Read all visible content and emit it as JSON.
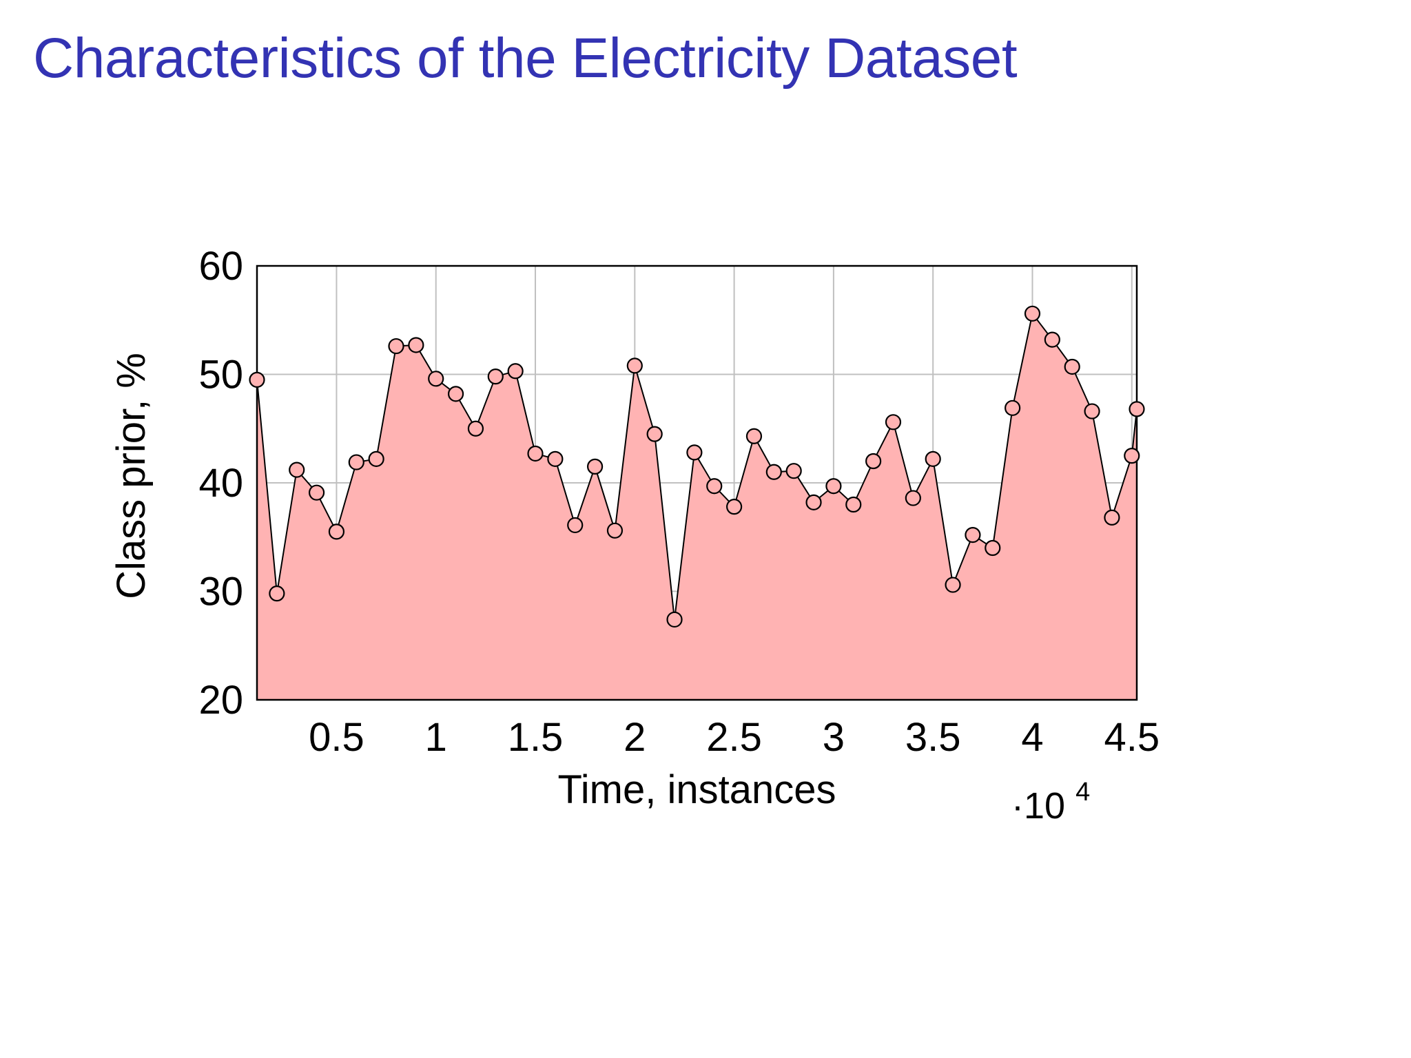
{
  "slide": {
    "title": "Characteristics of the Electricity Dataset",
    "title_color": "#3333b3"
  },
  "chart_data": {
    "type": "area",
    "xlabel": "Time, instances",
    "ylabel": "Class prior, %",
    "x_multiplier": "·10",
    "x_multiplier_exp": "4",
    "xlim": [
      0.1,
      4.525
    ],
    "ylim": [
      20,
      60
    ],
    "x_ticks": [
      0.5,
      1,
      1.5,
      2,
      2.5,
      3,
      3.5,
      4,
      4.5
    ],
    "x_tick_labels": [
      "0.5",
      "1",
      "1.5",
      "2",
      "2.5",
      "3",
      "3.5",
      "4",
      "4.5"
    ],
    "y_ticks": [
      20,
      30,
      40,
      50,
      60
    ],
    "y_tick_labels": [
      "20",
      "30",
      "40",
      "50",
      "60"
    ],
    "grid": true,
    "colors": {
      "fill": "#ffb3b3",
      "marker_fill": "#ffb3b3",
      "line": "#000000",
      "grid": "#c0c0c0"
    },
    "x": [
      0.1,
      0.2,
      0.3,
      0.4,
      0.5,
      0.6,
      0.7,
      0.8,
      0.9,
      1.0,
      1.1,
      1.2,
      1.3,
      1.4,
      1.5,
      1.6,
      1.7,
      1.8,
      1.9,
      2.0,
      2.1,
      2.2,
      2.3,
      2.4,
      2.5,
      2.6,
      2.7,
      2.8,
      2.9,
      3.0,
      3.1,
      3.2,
      3.3,
      3.4,
      3.5,
      3.6,
      3.7,
      3.8,
      3.9,
      4.0,
      4.1,
      4.2,
      4.3,
      4.4,
      4.5,
      4.525
    ],
    "y": [
      49.5,
      29.8,
      41.2,
      39.1,
      35.5,
      41.9,
      42.2,
      52.6,
      52.7,
      49.6,
      48.2,
      45.0,
      49.8,
      50.3,
      42.7,
      42.2,
      36.1,
      41.5,
      35.6,
      50.8,
      44.5,
      27.4,
      42.8,
      39.7,
      37.8,
      44.3,
      41.0,
      41.1,
      38.2,
      39.7,
      38.0,
      42.0,
      45.6,
      38.6,
      42.2,
      30.6,
      35.2,
      34.0,
      46.9,
      55.6,
      53.2,
      50.7,
      46.6,
      36.8,
      42.5,
      46.8
    ]
  }
}
